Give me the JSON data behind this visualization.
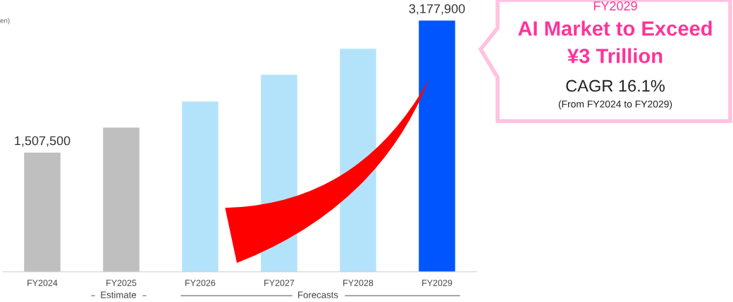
{
  "chart_data": {
    "type": "bar",
    "categories": [
      "FY2024",
      "FY2025",
      "FY2026",
      "FY2027",
      "FY2028",
      "FY2029"
    ],
    "values": [
      1507500,
      1825000,
      2154000,
      2493000,
      2822000,
      3177900
    ],
    "value_labels": [
      "1,507,500",
      null,
      null,
      null,
      null,
      "3,177,900"
    ],
    "colors": [
      "#bfbfbf",
      "#bfbfbf",
      "#b3e3fb",
      "#b3e3fb",
      "#b3e3fb",
      "#0055ff"
    ],
    "grid": false,
    "legend": false,
    "annotations": [
      "en)",
      "Estimate",
      "Forecasts",
      "FY2029",
      "AI Market to Exceed",
      "¥3 Trillion",
      "CAGR 16.1%",
      "(From FY2024 to FY2029)"
    ]
  }
}
